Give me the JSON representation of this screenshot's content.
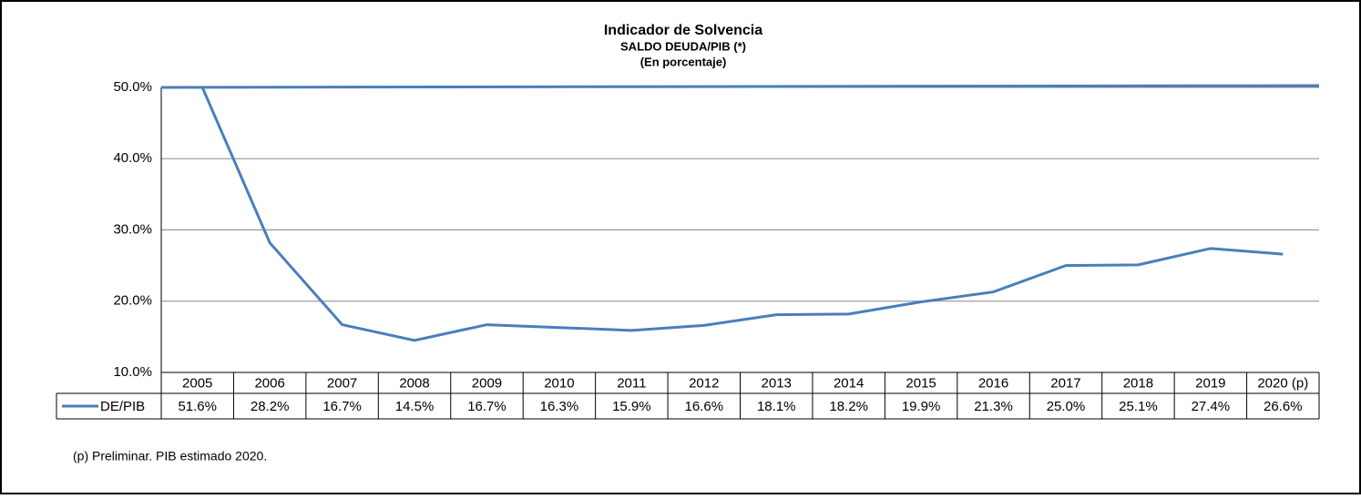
{
  "chart_data": {
    "type": "line",
    "title": "Indicador de Solvencia",
    "subtitle": "SALDO DEUDA/PIB (*)",
    "unit_note": "(En porcentaje)",
    "categories": [
      "2005",
      "2006",
      "2007",
      "2008",
      "2009",
      "2010",
      "2011",
      "2012",
      "2013",
      "2014",
      "2015",
      "2016",
      "2017",
      "2018",
      "2019",
      "2020 (p)"
    ],
    "series": [
      {
        "name": "DE/PIB",
        "color": "#4a7ebb",
        "values": [
          51.6,
          28.2,
          16.7,
          14.5,
          16.7,
          16.3,
          15.9,
          16.6,
          18.1,
          18.2,
          19.9,
          21.3,
          25.0,
          25.1,
          27.4,
          26.6
        ],
        "value_labels": [
          "51.6%",
          "28.2%",
          "16.7%",
          "14.5%",
          "16.7%",
          "16.3%",
          "15.9%",
          "16.6%",
          "18.1%",
          "18.2%",
          "19.9%",
          "21.3%",
          "25.0%",
          "25.1%",
          "27.4%",
          "26.6%"
        ]
      }
    ],
    "ylim": [
      10,
      50
    ],
    "yticks": [
      {
        "value": 10,
        "label": "10.0%"
      },
      {
        "value": 20,
        "label": "20.0%"
      },
      {
        "value": 30,
        "label": "30.0%"
      },
      {
        "value": 40,
        "label": "40.0%"
      },
      {
        "value": 50,
        "label": "50.0%"
      }
    ],
    "grid": true,
    "footnote": "(p)  Preliminar. PIB estimado 2020."
  }
}
